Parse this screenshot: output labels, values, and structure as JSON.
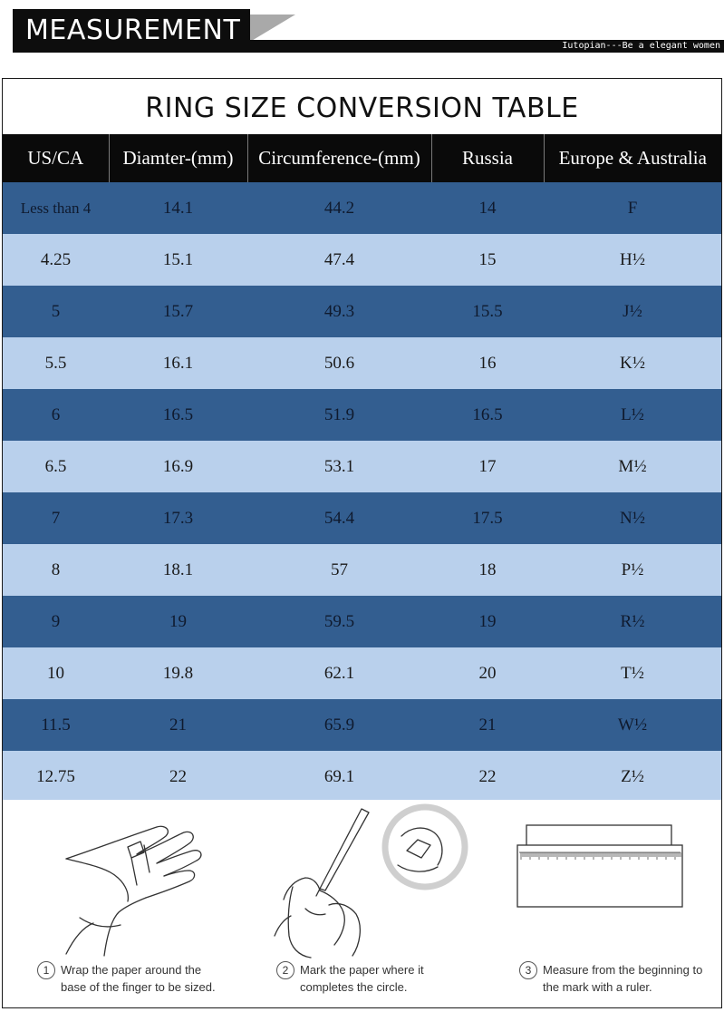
{
  "banner": {
    "title": "MEASUREMENT",
    "tagline": "Iutopian---Be a elegant women"
  },
  "table_title": "RING  SIZE CONVERSION TABLE",
  "columns": [
    "US/CA",
    "Diamter-(mm)",
    "Circumference-(mm)",
    "Russia",
    "Europe & Australia"
  ],
  "rows": [
    [
      "Less than 4",
      "14.1",
      "44.2",
      "14",
      "F"
    ],
    [
      "4.25",
      "15.1",
      "47.4",
      "15",
      "H½"
    ],
    [
      "5",
      "15.7",
      "49.3",
      "15.5",
      "J½"
    ],
    [
      "5.5",
      "16.1",
      "50.6",
      "16",
      "K½"
    ],
    [
      "6",
      "16.5",
      "51.9",
      "16.5",
      "L½"
    ],
    [
      "6.5",
      "16.9",
      "53.1",
      "17",
      "M½"
    ],
    [
      "7",
      "17.3",
      "54.4",
      "17.5",
      "N½"
    ],
    [
      "8",
      "18.1",
      "57",
      "18",
      "P½"
    ],
    [
      "9",
      "19",
      "59.5",
      "19",
      "R½"
    ],
    [
      "10",
      "19.8",
      "62.1",
      "20",
      "T½"
    ],
    [
      "11.5",
      "21",
      "65.9",
      "21",
      "W½"
    ],
    [
      "12.75",
      "22",
      "69.1",
      "22",
      "Z½"
    ]
  ],
  "colors": {
    "row_dark": "#335e90",
    "row_light": "#b9d0ec",
    "header": "#0a0a0a"
  },
  "steps": [
    {
      "number": "1",
      "line1": "Wrap the paper around the",
      "line2": "base of the finger to be sized.",
      "icon": "hand-wrap-icon"
    },
    {
      "number": "2",
      "line1": "Mark the paper where it",
      "line2": "completes the circle.",
      "icon": "pen-mark-icon"
    },
    {
      "number": "3",
      "line1": "Measure from the beginning to",
      "line2": "the mark with a ruler.",
      "icon": "ruler-icon"
    }
  ]
}
